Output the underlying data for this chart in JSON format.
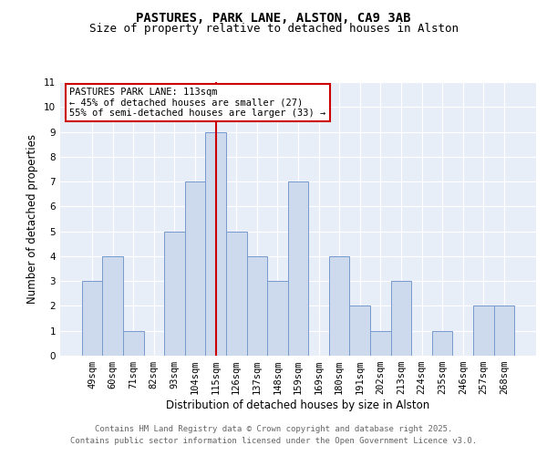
{
  "title": "PASTURES, PARK LANE, ALSTON, CA9 3AB",
  "subtitle": "Size of property relative to detached houses in Alston",
  "xlabel": "Distribution of detached houses by size in Alston",
  "ylabel": "Number of detached properties",
  "categories": [
    "49sqm",
    "60sqm",
    "71sqm",
    "82sqm",
    "93sqm",
    "104sqm",
    "115sqm",
    "126sqm",
    "137sqm",
    "148sqm",
    "159sqm",
    "169sqm",
    "180sqm",
    "191sqm",
    "202sqm",
    "213sqm",
    "224sqm",
    "235sqm",
    "246sqm",
    "257sqm",
    "268sqm"
  ],
  "values": [
    3,
    4,
    1,
    0,
    5,
    7,
    9,
    5,
    4,
    3,
    7,
    0,
    4,
    2,
    1,
    3,
    0,
    1,
    0,
    2,
    2
  ],
  "bar_color": "#cddaee",
  "bar_edge_color": "#7799cc",
  "vline_x_index": 6,
  "vline_color": "#cc0000",
  "annotation_text": "PASTURES PARK LANE: 113sqm\n← 45% of detached houses are smaller (27)\n55% of semi-detached houses are larger (33) →",
  "annotation_box_color": "#ffffff",
  "annotation_box_edge": "#cc0000",
  "ylim": [
    0,
    11
  ],
  "yticks": [
    0,
    1,
    2,
    3,
    4,
    5,
    6,
    7,
    8,
    9,
    10,
    11
  ],
  "bg_color": "#e8eef8",
  "footer_text": "Contains HM Land Registry data © Crown copyright and database right 2025.\nContains public sector information licensed under the Open Government Licence v3.0.",
  "title_fontsize": 10,
  "subtitle_fontsize": 9,
  "axis_label_fontsize": 8.5,
  "tick_fontsize": 7.5,
  "annotation_fontsize": 7.5,
  "footer_fontsize": 6.5
}
